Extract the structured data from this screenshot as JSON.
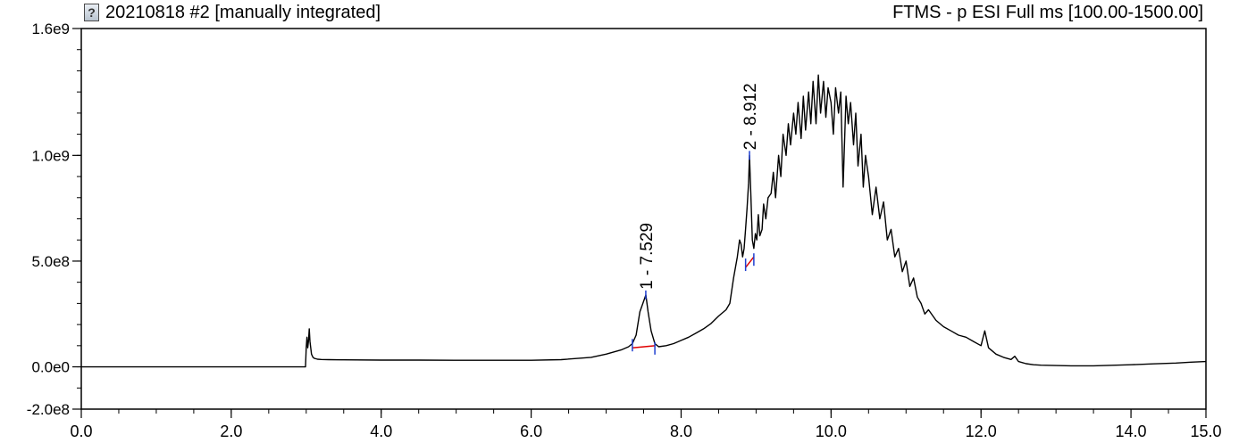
{
  "header": {
    "title": "20210818 #2 [manually integrated]",
    "scan_filter": "FTMS - p ESI Full ms [100.00-1500.00]",
    "help_icon": "help-icon",
    "help_glyph": "?"
  },
  "chart_data": {
    "type": "line",
    "xlim": [
      0,
      15
    ],
    "ylim": [
      -200000000,
      1600000000
    ],
    "x_ticks": [
      0,
      2,
      4,
      6,
      8,
      10,
      12,
      14,
      15
    ],
    "x_tick_labels": [
      "0.0",
      "2.0",
      "4.0",
      "6.0",
      "8.0",
      "10.0",
      "12.0",
      "14.0",
      "15.0"
    ],
    "y_ticks": [
      -200000000,
      0,
      500000000,
      1000000000,
      1600000000
    ],
    "y_tick_labels": [
      "-2.0e8",
      "0.0e0",
      "5.0e8",
      "1.0e9",
      "1.6e9"
    ],
    "grid": false,
    "peaks": [
      {
        "label": "1 - 7.529",
        "rt": 7.529,
        "apex": 340000000,
        "start": 7.35,
        "end": 7.65,
        "base_start": 90000000,
        "base_end": 100000000
      },
      {
        "label": "2 - 8.912",
        "rt": 8.912,
        "apex": 1000000000,
        "start": 8.86,
        "end": 8.97,
        "base_start": 470000000,
        "base_end": 520000000
      }
    ],
    "series": [
      {
        "color": "#000000",
        "x": [
          0.0,
          2.99,
          3.0,
          3.01,
          3.02,
          3.03,
          3.04,
          3.05,
          3.07,
          3.09,
          3.11,
          3.13,
          3.15,
          3.2,
          3.3,
          3.5,
          4.0,
          4.5,
          5.0,
          5.5,
          6.0,
          6.4,
          6.8,
          7.0,
          7.2,
          7.3,
          7.35,
          7.4,
          7.45,
          7.5,
          7.53,
          7.56,
          7.6,
          7.65,
          7.7,
          7.8,
          7.9,
          8.0,
          8.1,
          8.2,
          8.3,
          8.4,
          8.5,
          8.6,
          8.65,
          8.7,
          8.75,
          8.78,
          8.8,
          8.82,
          8.84,
          8.86,
          8.88,
          8.9,
          8.912,
          8.93,
          8.95,
          8.97,
          8.99,
          9.01,
          9.03,
          9.05,
          9.08,
          9.1,
          9.13,
          9.16,
          9.2,
          9.23,
          9.26,
          9.3,
          9.33,
          9.36,
          9.4,
          9.43,
          9.46,
          9.5,
          9.53,
          9.56,
          9.6,
          9.63,
          9.66,
          9.7,
          9.73,
          9.76,
          9.8,
          9.83,
          9.86,
          9.9,
          9.93,
          9.96,
          10.0,
          10.03,
          10.06,
          10.1,
          10.13,
          10.16,
          10.2,
          10.23,
          10.26,
          10.3,
          10.33,
          10.36,
          10.4,
          10.43,
          10.46,
          10.5,
          10.55,
          10.6,
          10.65,
          10.7,
          10.75,
          10.8,
          10.85,
          10.9,
          10.95,
          11.0,
          11.05,
          11.1,
          11.15,
          11.2,
          11.25,
          11.3,
          11.4,
          11.5,
          11.6,
          11.7,
          11.8,
          11.9,
          12.0,
          12.05,
          12.1,
          12.2,
          12.3,
          12.4,
          12.45,
          12.5,
          12.6,
          12.7,
          12.8,
          13.0,
          13.2,
          13.5,
          13.8,
          14.0,
          14.3,
          14.6,
          14.8,
          15.0
        ],
        "y": [
          0,
          0,
          90000000,
          140000000,
          90000000,
          120000000,
          180000000,
          120000000,
          60000000,
          45000000,
          40000000,
          38000000,
          36000000,
          35000000,
          34000000,
          33000000,
          32000000,
          32000000,
          31000000,
          31000000,
          31000000,
          34000000,
          45000000,
          60000000,
          80000000,
          95000000,
          110000000,
          150000000,
          260000000,
          310000000,
          340000000,
          260000000,
          170000000,
          110000000,
          95000000,
          100000000,
          110000000,
          125000000,
          140000000,
          160000000,
          180000000,
          205000000,
          240000000,
          270000000,
          300000000,
          420000000,
          520000000,
          600000000,
          580000000,
          520000000,
          560000000,
          650000000,
          750000000,
          870000000,
          1000000000,
          820000000,
          600000000,
          560000000,
          630000000,
          600000000,
          720000000,
          620000000,
          650000000,
          770000000,
          700000000,
          800000000,
          820000000,
          920000000,
          800000000,
          1000000000,
          900000000,
          1100000000,
          1000000000,
          1150000000,
          1050000000,
          1200000000,
          1100000000,
          1250000000,
          1080000000,
          1280000000,
          1120000000,
          1300000000,
          1150000000,
          1350000000,
          1150000000,
          1380000000,
          1200000000,
          1350000000,
          1180000000,
          1320000000,
          1250000000,
          1100000000,
          1320000000,
          1200000000,
          1300000000,
          850000000,
          1280000000,
          1150000000,
          1250000000,
          1050000000,
          1200000000,
          950000000,
          1100000000,
          850000000,
          1000000000,
          900000000,
          720000000,
          850000000,
          700000000,
          780000000,
          600000000,
          650000000,
          520000000,
          560000000,
          450000000,
          500000000,
          380000000,
          420000000,
          330000000,
          300000000,
          250000000,
          270000000,
          220000000,
          190000000,
          170000000,
          150000000,
          140000000,
          120000000,
          100000000,
          170000000,
          90000000,
          60000000,
          45000000,
          35000000,
          50000000,
          25000000,
          15000000,
          10000000,
          8000000,
          6000000,
          5000000,
          5000000,
          8000000,
          10000000,
          14000000,
          18000000,
          22000000,
          25000000
        ]
      }
    ]
  }
}
